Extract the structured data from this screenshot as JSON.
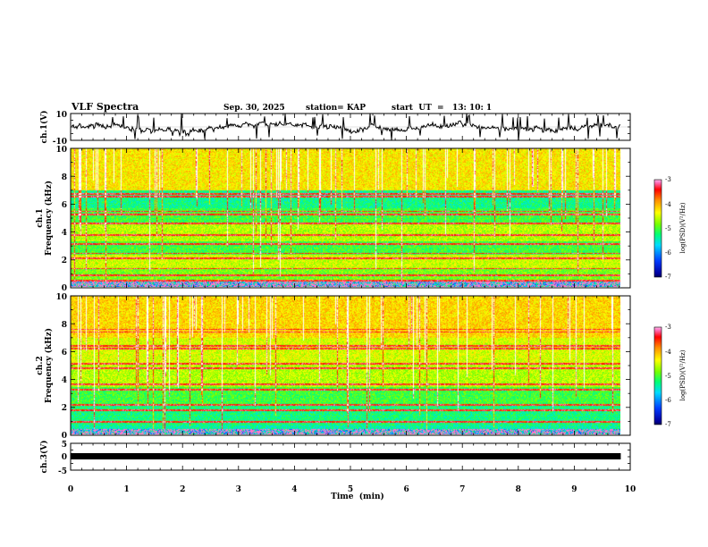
{
  "header": {
    "title": "VLF Spectra",
    "date": "Sep. 30, 2025",
    "station": "station= KAP",
    "start": "start  UT  =   13: 10: 1"
  },
  "chart_data": [
    {
      "type": "line",
      "name": "ch1-waveform",
      "ylabel": "ch.1(V)",
      "ylim": [
        -10,
        10
      ],
      "yticks": [
        "10",
        "-10"
      ],
      "xlim": [
        0,
        10
      ],
      "data_end_min": 9.83
    },
    {
      "type": "heatmap",
      "name": "ch1-spectrogram",
      "ylabel_top": "ch.1",
      "ylabel": "Frequency (kHz)",
      "ylim": [
        0,
        10
      ],
      "yticks": [
        "0",
        "2",
        "4",
        "6",
        "8",
        "10"
      ],
      "xlim": [
        0,
        10
      ],
      "data_end_min": 9.83,
      "colorbar": {
        "label": "log(PSD)(V²/Hz)",
        "range": [
          -7,
          -3
        ],
        "ticks": [
          "-3",
          "-4",
          "-5",
          "-6",
          "-7"
        ]
      }
    },
    {
      "type": "heatmap",
      "name": "ch2-spectrogram",
      "ylabel_top": "ch.2",
      "ylabel": "Frequency (kHz)",
      "ylim": [
        0,
        10
      ],
      "yticks": [
        "0",
        "2",
        "4",
        "6",
        "8",
        "10"
      ],
      "xlim": [
        0,
        10
      ],
      "data_end_min": 9.83,
      "colorbar": {
        "label": "log(PSD)(V²/Hz)",
        "range": [
          -7,
          -3
        ],
        "ticks": [
          "-3",
          "-4",
          "-5",
          "-6",
          "-7"
        ]
      }
    },
    {
      "type": "line",
      "name": "ch3-level",
      "ylabel": "ch.3(V)",
      "ylim": [
        -5,
        5
      ],
      "yticks": [
        "5",
        "0",
        "-5"
      ],
      "xlim": [
        0,
        10
      ],
      "constant_value": -0.5,
      "data_end_min": 9.83
    }
  ],
  "xaxis": {
    "label": "Time  (min)",
    "ticks": [
      "0",
      "1",
      "2",
      "3",
      "4",
      "5",
      "6",
      "7",
      "8",
      "9",
      "10"
    ],
    "range": [
      0,
      10
    ]
  }
}
